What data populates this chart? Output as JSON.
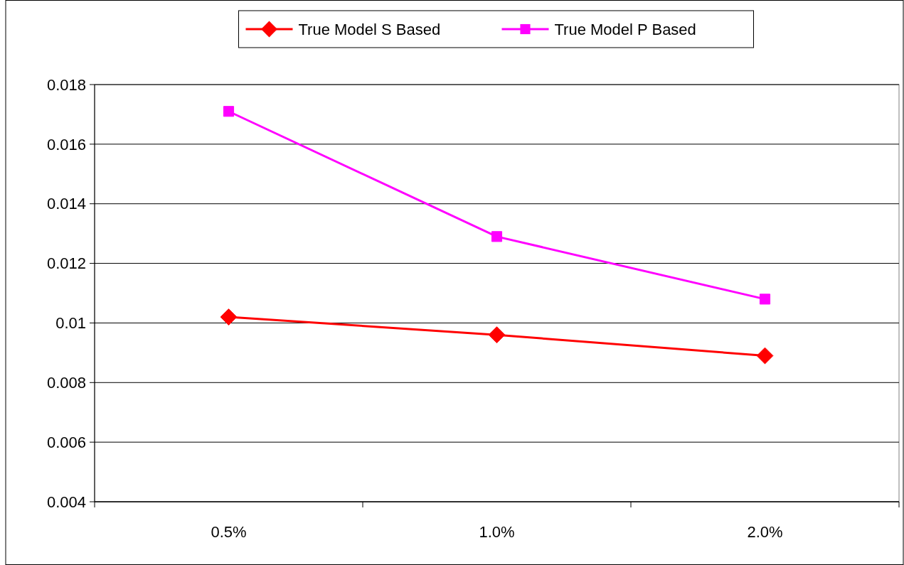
{
  "chart_data": {
    "type": "line",
    "categories": [
      "0.5%",
      "1.0%",
      "2.0%"
    ],
    "series": [
      {
        "name": "True Model S Based",
        "color": "#ff0000",
        "marker": "diamond",
        "values": [
          0.0102,
          0.0096,
          0.0089
        ]
      },
      {
        "name": "True Model P Based",
        "color": "#ff00ff",
        "marker": "square",
        "values": [
          0.0171,
          0.0129,
          0.0108
        ]
      }
    ],
    "ylim": [
      0.004,
      0.018
    ],
    "yticks": [
      0.004,
      0.006,
      0.008,
      0.01,
      0.012,
      0.014,
      0.016,
      0.018
    ],
    "grid": "y",
    "legend": "top"
  }
}
